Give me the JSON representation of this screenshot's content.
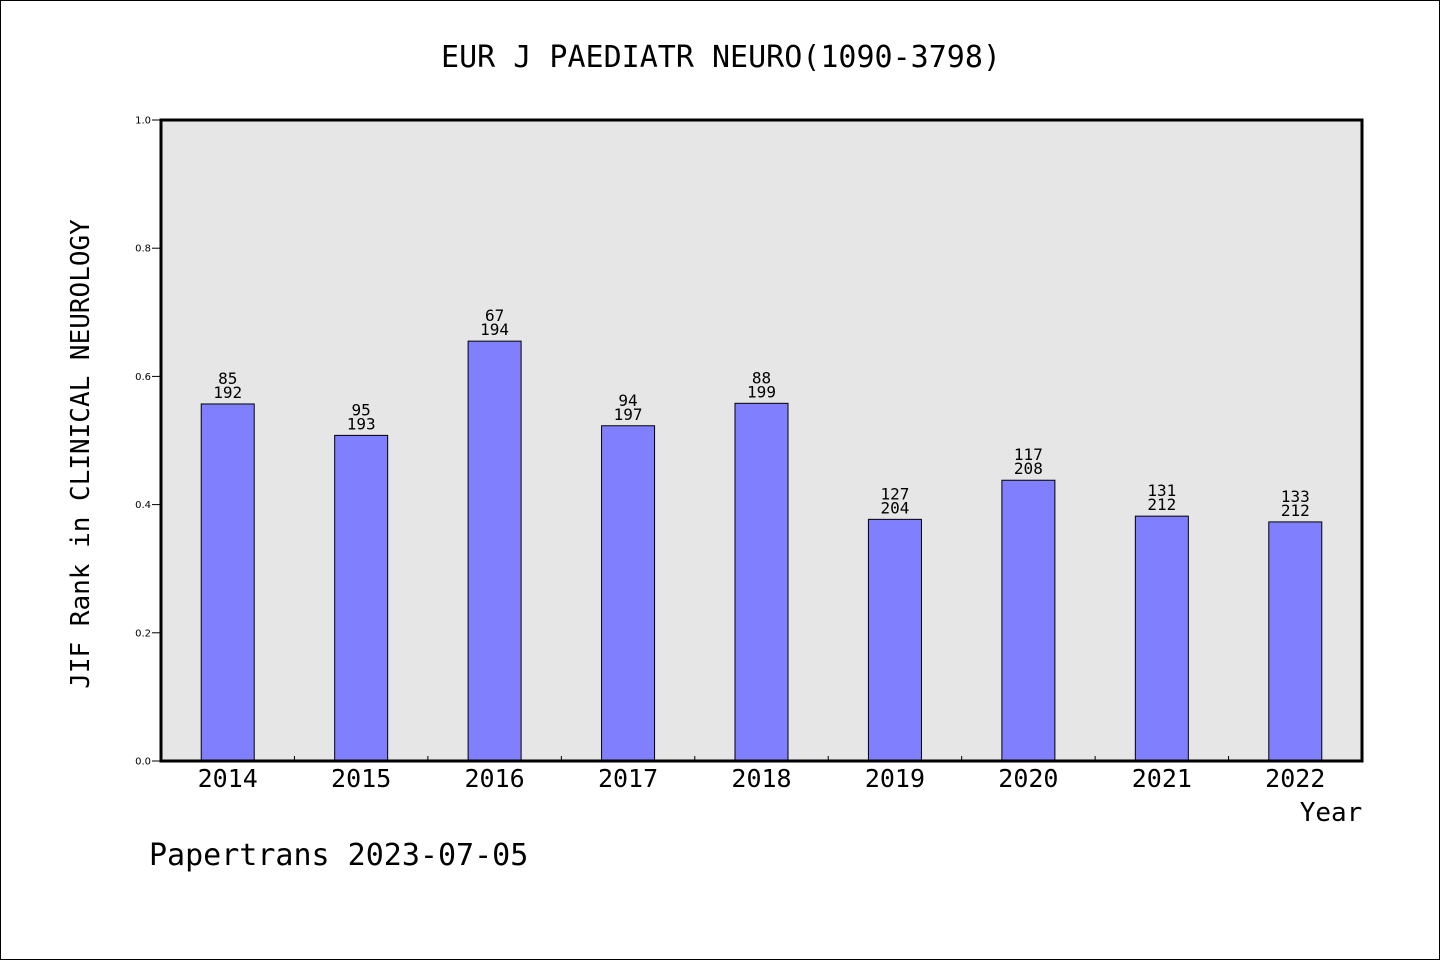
{
  "chart_data": {
    "type": "bar",
    "title": "EUR J PAEDIATR NEURO(1090-3798)",
    "xlabel": "Year",
    "ylabel": "JIF Rank in CLINICAL NEUROLOGY",
    "ylim": [
      0,
      1.0
    ],
    "yticks": [
      "0.0",
      "0.2",
      "0.4",
      "0.6",
      "0.8",
      "1.0"
    ],
    "categories": [
      "2014",
      "2015",
      "2016",
      "2017",
      "2018",
      "2019",
      "2020",
      "2021",
      "2022"
    ],
    "values": [
      0.557,
      0.508,
      0.655,
      0.523,
      0.558,
      0.377,
      0.438,
      0.382,
      0.373
    ],
    "ranks": [
      "85",
      "95",
      "67",
      "94",
      "88",
      "127",
      "117",
      "131",
      "133"
    ],
    "totals": [
      "192",
      "193",
      "194",
      "197",
      "199",
      "204",
      "208",
      "212",
      "212"
    ],
    "grid": false,
    "colors": {
      "bar_fill": "#8080ff",
      "bar_stroke": "#000000",
      "plot_background": "#e6e6e6"
    }
  },
  "footer": {
    "text": "Papertrans 2023-07-05"
  }
}
